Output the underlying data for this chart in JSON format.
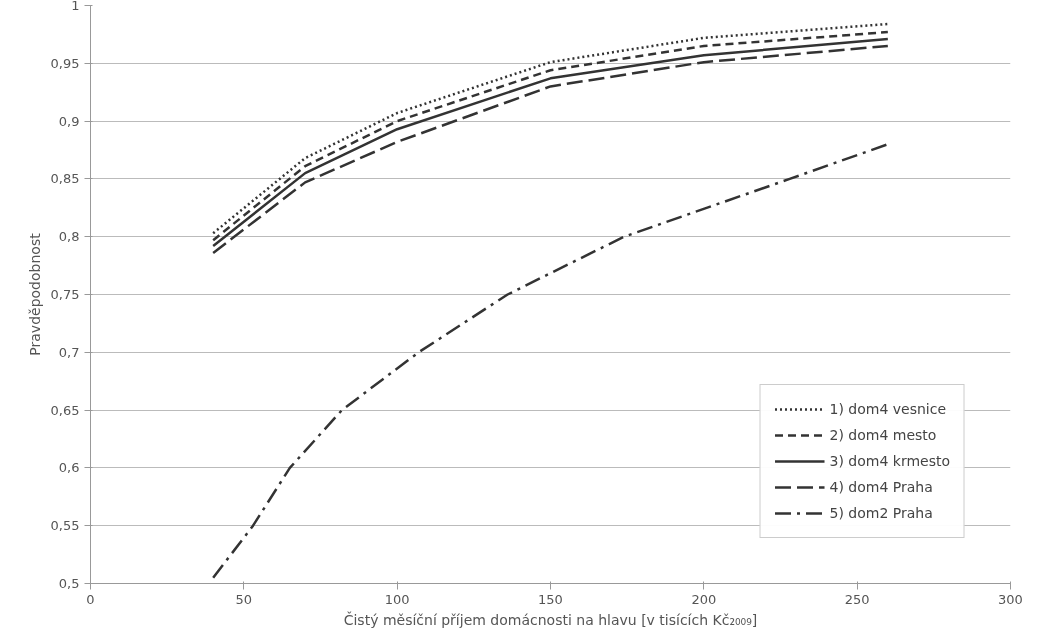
{
  "chart_data": {
    "type": "line",
    "xlabel": "Čistý měsíční příjem domácnosti na hlavu [v tisících Kč₂₀₀₉]",
    "ylabel": "Pravděpodobnost",
    "xlim": [
      0,
      300
    ],
    "xticks": [
      0,
      50,
      100,
      150,
      200,
      250,
      300
    ],
    "ylim": [
      0.5,
      1
    ],
    "yticks": [
      {
        "value": 0.5,
        "label": "0,5"
      },
      {
        "value": 0.55,
        "label": "0,55"
      },
      {
        "value": 0.6,
        "label": "0,6"
      },
      {
        "value": 0.65,
        "label": "0,65"
      },
      {
        "value": 0.7,
        "label": "0,7"
      },
      {
        "value": 0.75,
        "label": "0,75"
      },
      {
        "value": 0.8,
        "label": "0,8"
      },
      {
        "value": 0.85,
        "label": "0,85"
      },
      {
        "value": 0.9,
        "label": "0,9"
      },
      {
        "value": 0.95,
        "label": "0,95"
      },
      {
        "value": 1,
        "label": "1"
      }
    ],
    "grid": "y",
    "legend": "bottom right",
    "series": [
      {
        "name": "1) dom4 vesnice",
        "color": "#333333",
        "line_style": "dotted",
        "x": [
          40,
          70,
          100,
          150,
          200,
          260
        ],
        "values": [
          0.803,
          0.868,
          0.907,
          0.951,
          0.972,
          0.984
        ]
      },
      {
        "name": "2) dom4 mesto",
        "color": "#333333",
        "line_style": "dashed",
        "x": [
          40,
          70,
          100,
          150,
          200,
          260
        ],
        "values": [
          0.797,
          0.861,
          0.9,
          0.944,
          0.965,
          0.977
        ]
      },
      {
        "name": "3) dom4 krmesto",
        "color": "#333333",
        "line_style": "solid",
        "x": [
          40,
          70,
          100,
          150,
          200,
          260
        ],
        "values": [
          0.792,
          0.855,
          0.893,
          0.937,
          0.957,
          0.971
        ]
      },
      {
        "name": "4) dom4 Praha",
        "color": "#333333",
        "line_style": "longdash",
        "x": [
          40,
          70,
          100,
          150,
          200,
          260
        ],
        "values": [
          0.786,
          0.847,
          0.882,
          0.93,
          0.951,
          0.965
        ]
      },
      {
        "name": "5) dom2 Praha",
        "color": "#333333",
        "line_style": "dashdot",
        "x": [
          40,
          53,
          65,
          82,
          107,
          136,
          174,
          228,
          260
        ],
        "values": [
          0.505,
          0.55,
          0.6,
          0.65,
          0.7,
          0.75,
          0.8,
          0.85,
          0.88
        ]
      }
    ]
  }
}
